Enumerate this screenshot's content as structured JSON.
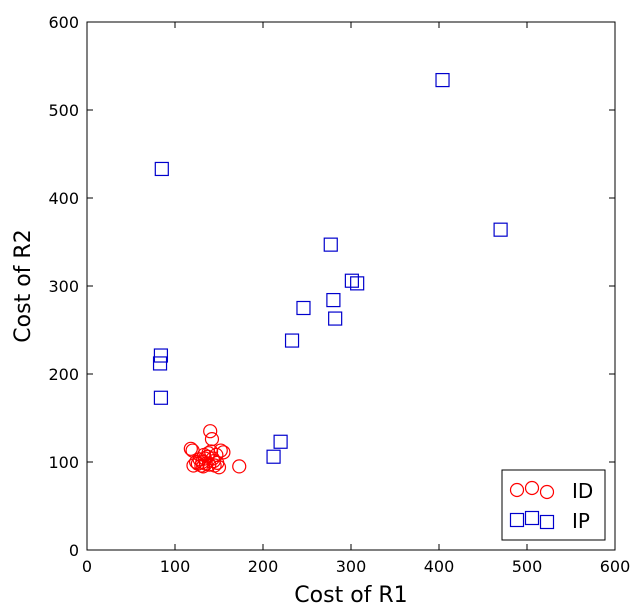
{
  "chart_data": {
    "type": "scatter",
    "title": "",
    "xlabel": "Cost of R1",
    "ylabel": "Cost of R2",
    "xlim": [
      0,
      600
    ],
    "ylim": [
      0,
      600
    ],
    "xticks": [
      "0",
      "100",
      "200",
      "300",
      "400",
      "500",
      "600"
    ],
    "yticks": [
      "0",
      "100",
      "200",
      "300",
      "400",
      "500",
      "600"
    ],
    "grid": false,
    "legend_position": "bottom-right",
    "series": [
      {
        "name": "ID",
        "marker": "circle",
        "color": "#ff0000",
        "points": [
          [
            118,
            115
          ],
          [
            120,
            113
          ],
          [
            121,
            96
          ],
          [
            124,
            100
          ],
          [
            126,
            98
          ],
          [
            128,
            103
          ],
          [
            130,
            96
          ],
          [
            131,
            100
          ],
          [
            132,
            95
          ],
          [
            133,
            108
          ],
          [
            134,
            104
          ],
          [
            135,
            98
          ],
          [
            137,
            106
          ],
          [
            138,
            110
          ],
          [
            139,
            97
          ],
          [
            140,
            135
          ],
          [
            141,
            112
          ],
          [
            142,
            126
          ],
          [
            143,
            104
          ],
          [
            144,
            101
          ],
          [
            145,
            96
          ],
          [
            147,
            108
          ],
          [
            148,
            99
          ],
          [
            150,
            94
          ],
          [
            152,
            113
          ],
          [
            155,
            111
          ],
          [
            173,
            95
          ]
        ]
      },
      {
        "name": "IP",
        "marker": "square",
        "color": "#0000cc",
        "points": [
          [
            85,
            433
          ],
          [
            84,
            221
          ],
          [
            83,
            212
          ],
          [
            84,
            173
          ],
          [
            212,
            106
          ],
          [
            220,
            123
          ],
          [
            233,
            238
          ],
          [
            246,
            275
          ],
          [
            277,
            347
          ],
          [
            280,
            284
          ],
          [
            282,
            263
          ],
          [
            301,
            306
          ],
          [
            307,
            303
          ],
          [
            404,
            534
          ],
          [
            470,
            364
          ]
        ]
      }
    ]
  }
}
